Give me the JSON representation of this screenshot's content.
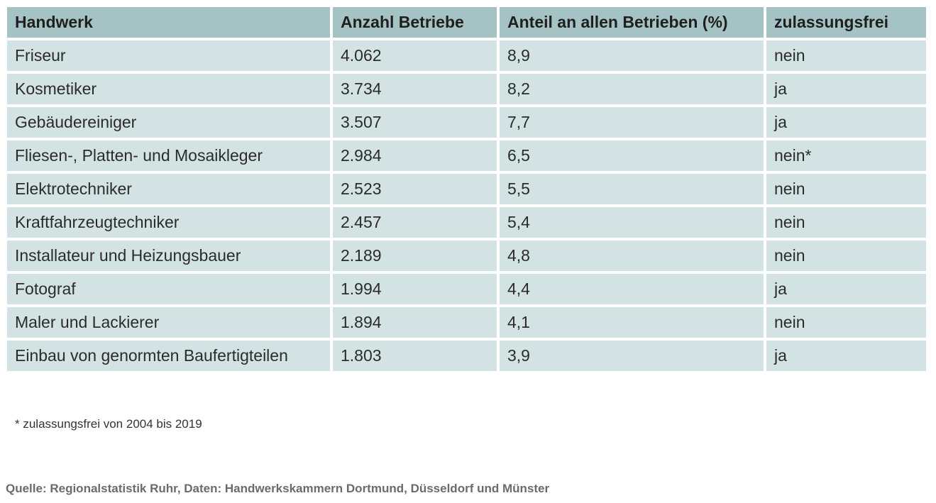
{
  "table": {
    "headers": [
      "Handwerk",
      "Anzahl Betriebe",
      "Anteil an allen Betrieben (%)",
      "zulassungsfrei"
    ],
    "rows": [
      [
        "Friseur",
        "4.062",
        "8,9",
        "nein"
      ],
      [
        "Kosmetiker",
        "3.734",
        "8,2",
        "ja"
      ],
      [
        "Gebäudereiniger",
        "3.507",
        "7,7",
        "ja"
      ],
      [
        "Fliesen-, Platten- und Mosaikleger",
        "2.984",
        "6,5",
        "nein*"
      ],
      [
        "Elektrotechniker",
        "2.523",
        "5,5",
        "nein"
      ],
      [
        "Kraftfahrzeugtechniker",
        "2.457",
        "5,4",
        "nein"
      ],
      [
        "Installateur und Heizungsbauer",
        "2.189",
        "4,8",
        "nein"
      ],
      [
        "Fotograf",
        "1.994",
        "4,4",
        "ja"
      ],
      [
        "Maler und Lackierer",
        "1.894",
        "4,1",
        "nein"
      ],
      [
        "Einbau von genormten Baufertigteilen",
        "1.803",
        "3,9",
        "ja"
      ]
    ]
  },
  "footnote": "* zulassungsfrei von 2004 bis 2019",
  "source": "Quelle: Regionalstatistik Ruhr, Daten: Handwerkskammern Dortmund, Düsseldorf und Münster",
  "colors": {
    "header_bg": "#a5c3c4",
    "row_bg": "#d3e3e3",
    "source_text": "#6b6b6b"
  }
}
